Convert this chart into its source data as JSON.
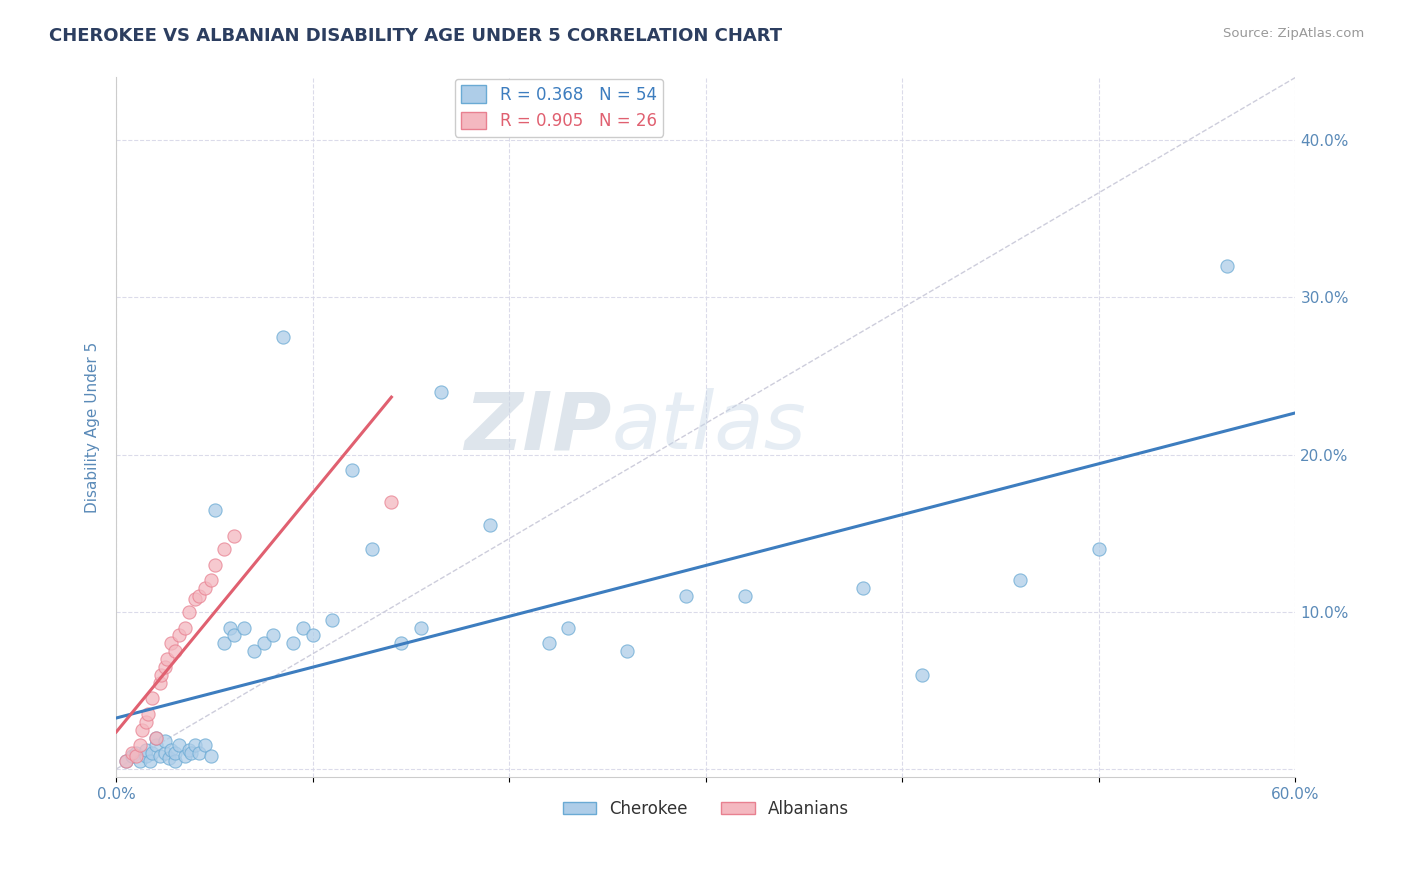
{
  "title": "CHEROKEE VS ALBANIAN DISABILITY AGE UNDER 5 CORRELATION CHART",
  "source_text": "Source: ZipAtlas.com",
  "ylabel": "Disability Age Under 5",
  "xlim": [
    0.0,
    0.6
  ],
  "ylim": [
    -0.005,
    0.44
  ],
  "xticks": [
    0.0,
    0.1,
    0.2,
    0.3,
    0.4,
    0.5,
    0.6
  ],
  "xticklabels": [
    "0.0%",
    "",
    "",
    "",
    "",
    "",
    "60.0%"
  ],
  "yticks": [
    0.0,
    0.1,
    0.2,
    0.3,
    0.4
  ],
  "yticklabels_right": [
    "",
    "10.0%",
    "20.0%",
    "30.0%",
    "40.0%"
  ],
  "cherokee_R": "0.368",
  "cherokee_N": "54",
  "albanian_R": "0.905",
  "albanian_N": "26",
  "cherokee_color": "#aecde8",
  "albanian_color": "#f4b8c0",
  "cherokee_edge_color": "#6aaad4",
  "albanian_edge_color": "#e88090",
  "cherokee_line_color": "#3d7dbf",
  "albanian_line_color": "#e06070",
  "ref_line_color": "#c8c8d8",
  "grid_color": "#d8d8e8",
  "background_color": "#ffffff",
  "watermark_zip": "ZIP",
  "watermark_atlas": "atlas",
  "title_color": "#2c3e60",
  "tick_color": "#5a8ab8",
  "ylabel_color": "#5a8ab8",
  "legend_labels": [
    "Cherokee",
    "Albanians"
  ],
  "cherokee_x": [
    0.005,
    0.008,
    0.01,
    0.012,
    0.015,
    0.015,
    0.017,
    0.018,
    0.02,
    0.02,
    0.022,
    0.025,
    0.025,
    0.027,
    0.028,
    0.03,
    0.03,
    0.032,
    0.035,
    0.037,
    0.038,
    0.04,
    0.042,
    0.045,
    0.048,
    0.05,
    0.055,
    0.058,
    0.06,
    0.065,
    0.07,
    0.075,
    0.08,
    0.085,
    0.09,
    0.095,
    0.1,
    0.11,
    0.12,
    0.13,
    0.145,
    0.155,
    0.165,
    0.19,
    0.22,
    0.23,
    0.26,
    0.29,
    0.32,
    0.38,
    0.41,
    0.46,
    0.5,
    0.565
  ],
  "cherokee_y": [
    0.005,
    0.008,
    0.01,
    0.005,
    0.008,
    0.012,
    0.005,
    0.01,
    0.015,
    0.02,
    0.008,
    0.01,
    0.018,
    0.007,
    0.012,
    0.005,
    0.01,
    0.015,
    0.008,
    0.012,
    0.01,
    0.015,
    0.01,
    0.015,
    0.008,
    0.165,
    0.08,
    0.09,
    0.085,
    0.09,
    0.075,
    0.08,
    0.085,
    0.275,
    0.08,
    0.09,
    0.085,
    0.095,
    0.19,
    0.14,
    0.08,
    0.09,
    0.24,
    0.155,
    0.08,
    0.09,
    0.075,
    0.11,
    0.11,
    0.115,
    0.06,
    0.12,
    0.14,
    0.32
  ],
  "albanian_x": [
    0.005,
    0.008,
    0.01,
    0.012,
    0.013,
    0.015,
    0.016,
    0.018,
    0.02,
    0.022,
    0.023,
    0.025,
    0.026,
    0.028,
    0.03,
    0.032,
    0.035,
    0.037,
    0.04,
    0.042,
    0.045,
    0.048,
    0.05,
    0.055,
    0.06,
    0.14
  ],
  "albanian_y": [
    0.005,
    0.01,
    0.008,
    0.015,
    0.025,
    0.03,
    0.035,
    0.045,
    0.02,
    0.055,
    0.06,
    0.065,
    0.07,
    0.08,
    0.075,
    0.085,
    0.09,
    0.1,
    0.108,
    0.11,
    0.115,
    0.12,
    0.13,
    0.14,
    0.148,
    0.17
  ],
  "albanian_line_xrange": [
    0.0,
    0.14
  ]
}
